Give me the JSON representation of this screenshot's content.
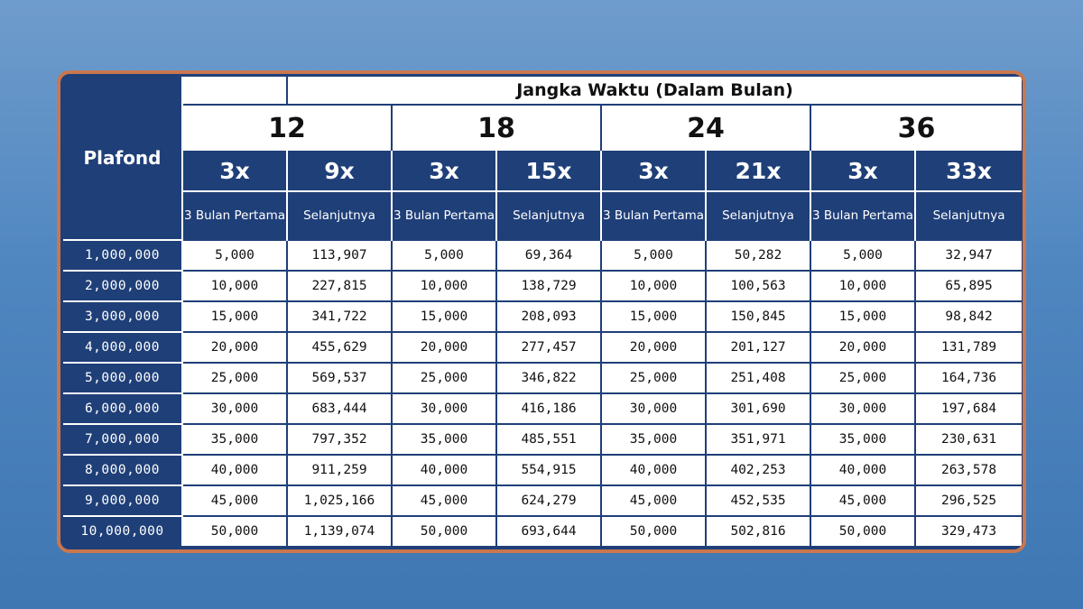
{
  "table": {
    "corner_label": "Plafond",
    "header_title": "Jangka Waktu (Dalam Bulan)",
    "terms": [
      "12",
      "18",
      "24",
      "36"
    ],
    "multipliers": [
      "3x",
      "9x",
      "3x",
      "15x",
      "3x",
      "21x",
      "3x",
      "33x"
    ],
    "subheaders": [
      "3 Bulan Pertama",
      "Selanjutnya",
      "3 Bulan Pertama",
      "Selanjutnya",
      "3 Bulan Pertama",
      "Selanjutnya",
      "3 Bulan Pertama",
      "Selanjutnya"
    ],
    "rows": [
      {
        "plafond": "1,000,000",
        "values": [
          "5,000",
          "113,907",
          "5,000",
          "69,364",
          "5,000",
          "50,282",
          "5,000",
          "32,947"
        ]
      },
      {
        "plafond": "2,000,000",
        "values": [
          "10,000",
          "227,815",
          "10,000",
          "138,729",
          "10,000",
          "100,563",
          "10,000",
          "65,895"
        ]
      },
      {
        "plafond": "3,000,000",
        "values": [
          "15,000",
          "341,722",
          "15,000",
          "208,093",
          "15,000",
          "150,845",
          "15,000",
          "98,842"
        ]
      },
      {
        "plafond": "4,000,000",
        "values": [
          "20,000",
          "455,629",
          "20,000",
          "277,457",
          "20,000",
          "201,127",
          "20,000",
          "131,789"
        ]
      },
      {
        "plafond": "5,000,000",
        "values": [
          "25,000",
          "569,537",
          "25,000",
          "346,822",
          "25,000",
          "251,408",
          "25,000",
          "164,736"
        ]
      },
      {
        "plafond": "6,000,000",
        "values": [
          "30,000",
          "683,444",
          "30,000",
          "416,186",
          "30,000",
          "301,690",
          "30,000",
          "197,684"
        ]
      },
      {
        "plafond": "7,000,000",
        "values": [
          "35,000",
          "797,352",
          "35,000",
          "485,551",
          "35,000",
          "351,971",
          "35,000",
          "230,631"
        ]
      },
      {
        "plafond": "8,000,000",
        "values": [
          "40,000",
          "911,259",
          "40,000",
          "554,915",
          "40,000",
          "402,253",
          "40,000",
          "263,578"
        ]
      },
      {
        "plafond": "9,000,000",
        "values": [
          "45,000",
          "1,025,166",
          "45,000",
          "624,279",
          "45,000",
          "452,535",
          "45,000",
          "296,525"
        ]
      },
      {
        "plafond": "10,000,000",
        "values": [
          "50,000",
          "1,139,074",
          "50,000",
          "693,644",
          "50,000",
          "502,816",
          "50,000",
          "329,473"
        ]
      }
    ]
  },
  "colors": {
    "navy": "#1f3f78",
    "frame_border": "#c9774f",
    "background": "#4f86c0"
  }
}
